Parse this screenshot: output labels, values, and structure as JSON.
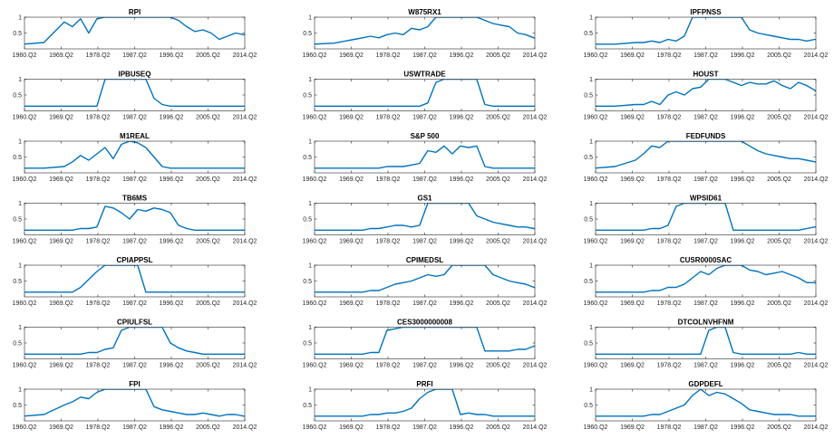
{
  "style": {
    "line_color": "#0072BD",
    "axis_color": "#262626"
  },
  "chart_data": {
    "type": "line",
    "layout": "small-multiples 7x3",
    "x_tick_labels": [
      "1960.Q2",
      "1969.Q2",
      "1978.Q2",
      "1987.Q2",
      "1996.Q2",
      "2005.Q2",
      "2014.Q2"
    ],
    "x_tick_values": [
      1960.25,
      1969.25,
      1978.25,
      1987.25,
      1996.25,
      2005.25,
      2014.25
    ],
    "xlim": [
      1960.25,
      2014.25
    ],
    "ylim": [
      0,
      1
    ],
    "y_tick_labels": [
      "0.5",
      "1"
    ],
    "y_tick_values": [
      0.5,
      1
    ],
    "x_sample": [
      1960,
      1965,
      1970,
      1972,
      1974,
      1976,
      1978,
      1980,
      1982,
      1984,
      1986,
      1988,
      1990,
      1992,
      1994,
      1996,
      1998,
      2000,
      2002,
      2004,
      2006,
      2008,
      2010,
      2012,
      2014,
      2016
    ],
    "panels": [
      {
        "title": "RPI",
        "y": [
          0.15,
          0.2,
          0.85,
          0.7,
          0.95,
          0.5,
          0.95,
          1.0,
          1.0,
          1.0,
          1.0,
          1.0,
          1.0,
          1.0,
          1.0,
          1.0,
          0.9,
          0.7,
          0.55,
          0.6,
          0.5,
          0.3,
          0.4,
          0.5,
          0.45,
          0.45
        ]
      },
      {
        "title": "W875RX1",
        "y": [
          0.15,
          0.18,
          0.3,
          0.35,
          0.4,
          0.35,
          0.45,
          0.5,
          0.45,
          0.65,
          0.6,
          0.7,
          1.0,
          1.0,
          1.0,
          1.0,
          1.0,
          1.0,
          0.9,
          0.8,
          0.75,
          0.7,
          0.5,
          0.45,
          0.35,
          0.3
        ]
      },
      {
        "title": "IPFPNSS",
        "y": [
          0.15,
          0.15,
          0.2,
          0.2,
          0.25,
          0.2,
          0.3,
          0.25,
          0.4,
          1.0,
          1.0,
          1.0,
          1.0,
          1.0,
          1.0,
          1.0,
          0.6,
          0.5,
          0.45,
          0.4,
          0.35,
          0.3,
          0.3,
          0.25,
          0.3,
          0.25
        ]
      },
      {
        "title": "IPBUSEQ",
        "y": [
          0.15,
          0.15,
          0.15,
          0.15,
          0.15,
          0.15,
          0.15,
          1.0,
          1.0,
          1.0,
          1.0,
          1.0,
          1.0,
          0.4,
          0.2,
          0.15,
          0.15,
          0.15,
          0.15,
          0.15,
          0.15,
          0.15,
          0.15,
          0.15,
          0.15,
          0.15
        ]
      },
      {
        "title": "USWTRADE",
        "y": [
          0.15,
          0.15,
          0.15,
          0.15,
          0.15,
          0.15,
          0.15,
          0.15,
          0.15,
          0.15,
          0.15,
          0.25,
          0.9,
          1.0,
          1.0,
          1.0,
          1.0,
          1.0,
          0.2,
          0.15,
          0.15,
          0.15,
          0.15,
          0.15,
          0.15,
          0.15
        ]
      },
      {
        "title": "HOUST",
        "y": [
          0.15,
          0.15,
          0.2,
          0.2,
          0.3,
          0.2,
          0.5,
          0.6,
          0.5,
          0.7,
          0.75,
          1.0,
          1.0,
          1.0,
          0.9,
          0.8,
          0.9,
          0.85,
          0.85,
          0.95,
          0.8,
          0.7,
          0.9,
          0.8,
          0.65,
          0.4
        ]
      },
      {
        "title": "M1REAL",
        "y": [
          0.15,
          0.15,
          0.2,
          0.35,
          0.55,
          0.4,
          0.6,
          0.8,
          0.45,
          0.9,
          1.0,
          0.95,
          0.8,
          0.5,
          0.2,
          0.15,
          0.15,
          0.15,
          0.15,
          0.15,
          0.15,
          0.15,
          0.15,
          0.15,
          0.15,
          0.15
        ]
      },
      {
        "title": "S&P 500",
        "y": [
          0.15,
          0.15,
          0.15,
          0.15,
          0.15,
          0.15,
          0.2,
          0.2,
          0.2,
          0.25,
          0.3,
          0.7,
          0.65,
          0.85,
          0.6,
          0.85,
          0.8,
          0.85,
          0.2,
          0.15,
          0.15,
          0.15,
          0.15,
          0.15,
          0.15,
          0.15
        ]
      },
      {
        "title": "FEDFUNDS",
        "y": [
          0.15,
          0.2,
          0.4,
          0.6,
          0.85,
          0.8,
          1.0,
          1.0,
          1.0,
          1.0,
          1.0,
          1.0,
          1.0,
          1.0,
          1.0,
          1.0,
          0.85,
          0.7,
          0.6,
          0.55,
          0.5,
          0.45,
          0.45,
          0.4,
          0.35,
          0.3
        ]
      },
      {
        "title": "TB6MS",
        "y": [
          0.15,
          0.15,
          0.15,
          0.15,
          0.2,
          0.2,
          0.25,
          0.9,
          0.85,
          0.7,
          0.5,
          0.8,
          0.75,
          0.85,
          0.8,
          0.7,
          0.3,
          0.2,
          0.15,
          0.15,
          0.15,
          0.15,
          0.15,
          0.15,
          0.15,
          0.15
        ]
      },
      {
        "title": "GS1",
        "y": [
          0.15,
          0.15,
          0.15,
          0.15,
          0.2,
          0.2,
          0.25,
          0.3,
          0.3,
          0.25,
          0.3,
          1.0,
          1.0,
          1.0,
          1.0,
          1.0,
          1.0,
          0.6,
          0.5,
          0.4,
          0.35,
          0.3,
          0.25,
          0.25,
          0.2,
          0.2
        ]
      },
      {
        "title": "WPSID61",
        "y": [
          0.15,
          0.15,
          0.15,
          0.15,
          0.2,
          0.2,
          0.3,
          0.9,
          1.0,
          1.0,
          1.0,
          1.0,
          1.0,
          1.0,
          0.15,
          0.15,
          0.15,
          0.15,
          0.15,
          0.15,
          0.15,
          0.15,
          0.15,
          0.2,
          0.25,
          0.3
        ]
      },
      {
        "title": "CPIAPPSL",
        "y": [
          0.15,
          0.15,
          0.15,
          0.15,
          0.3,
          0.55,
          0.8,
          1.0,
          1.0,
          1.0,
          1.0,
          1.0,
          0.15,
          0.15,
          0.15,
          0.15,
          0.15,
          0.15,
          0.15,
          0.15,
          0.15,
          0.15,
          0.15,
          0.15,
          0.15,
          0.15
        ]
      },
      {
        "title": "CPIMEDSL",
        "y": [
          0.15,
          0.15,
          0.15,
          0.15,
          0.2,
          0.2,
          0.3,
          0.4,
          0.45,
          0.5,
          0.6,
          0.7,
          0.65,
          0.7,
          1.0,
          1.0,
          1.0,
          1.0,
          1.0,
          0.7,
          0.6,
          0.5,
          0.45,
          0.4,
          0.3,
          0.2
        ]
      },
      {
        "title": "CUSR0000SAC",
        "y": [
          0.15,
          0.15,
          0.15,
          0.15,
          0.2,
          0.2,
          0.3,
          0.3,
          0.4,
          0.6,
          0.8,
          0.7,
          0.9,
          1.0,
          1.0,
          1.0,
          0.85,
          0.8,
          0.7,
          0.75,
          0.8,
          0.7,
          0.6,
          0.45,
          0.45,
          0.3
        ]
      },
      {
        "title": "CPIULFSL",
        "y": [
          0.15,
          0.15,
          0.15,
          0.15,
          0.15,
          0.2,
          0.2,
          0.3,
          0.35,
          0.9,
          1.0,
          1.0,
          1.0,
          1.0,
          1.0,
          0.5,
          0.35,
          0.25,
          0.2,
          0.15,
          0.15,
          0.15,
          0.15,
          0.15,
          0.15,
          0.15
        ]
      },
      {
        "title": "CES3000000008",
        "y": [
          0.15,
          0.15,
          0.15,
          0.15,
          0.2,
          0.2,
          0.9,
          0.95,
          1.0,
          1.0,
          1.0,
          1.0,
          1.0,
          1.0,
          1.0,
          1.0,
          1.0,
          1.0,
          0.25,
          0.25,
          0.25,
          0.25,
          0.3,
          0.3,
          0.4,
          0.45
        ]
      },
      {
        "title": "DTCOLNVHFNM",
        "y": [
          0.15,
          0.15,
          0.15,
          0.15,
          0.15,
          0.15,
          0.15,
          0.15,
          0.15,
          0.15,
          0.15,
          0.9,
          1.0,
          1.0,
          0.2,
          0.15,
          0.15,
          0.15,
          0.15,
          0.15,
          0.15,
          0.15,
          0.2,
          0.15,
          0.15,
          0.15
        ]
      },
      {
        "title": "FPI",
        "y": [
          0.15,
          0.2,
          0.5,
          0.6,
          0.75,
          0.7,
          0.9,
          1.0,
          1.0,
          1.0,
          1.0,
          1.0,
          1.0,
          0.45,
          0.35,
          0.3,
          0.25,
          0.2,
          0.2,
          0.25,
          0.2,
          0.15,
          0.2,
          0.2,
          0.15,
          0.15
        ]
      },
      {
        "title": "PRFI",
        "y": [
          0.15,
          0.15,
          0.15,
          0.15,
          0.2,
          0.2,
          0.25,
          0.25,
          0.3,
          0.4,
          0.7,
          0.9,
          1.0,
          1.0,
          1.0,
          0.2,
          0.25,
          0.2,
          0.2,
          0.15,
          0.15,
          0.15,
          0.15,
          0.15,
          0.15,
          0.15
        ]
      },
      {
        "title": "GDPDEFL",
        "y": [
          0.15,
          0.15,
          0.15,
          0.15,
          0.2,
          0.2,
          0.3,
          0.4,
          0.5,
          0.8,
          1.0,
          0.8,
          0.9,
          0.85,
          0.7,
          0.55,
          0.35,
          0.3,
          0.25,
          0.2,
          0.2,
          0.2,
          0.15,
          0.15,
          0.15,
          0.15
        ]
      }
    ]
  }
}
